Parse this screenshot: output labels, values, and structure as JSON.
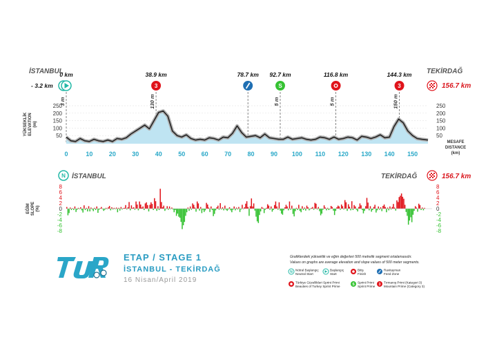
{
  "header": {
    "start_city": "İSTANBUL",
    "finish_city": "TEKİRDAĞ",
    "neutral_distance": "- 3.2 km",
    "total_distance": "156.7 km",
    "markers": [
      {
        "km": 0,
        "label": "0 km",
        "type": "start",
        "symbol": "▶",
        "color": "#22b8a6",
        "elevation": 3,
        "elev_label": "3 m"
      },
      {
        "km": 38.9,
        "label": "38.9 km",
        "type": "mountain",
        "symbol": "3",
        "color": "#e0141b",
        "elevation": 130,
        "elev_label": "130 m"
      },
      {
        "km": 78.7,
        "label": "78.7 km",
        "type": "feed",
        "symbol": "/",
        "color": "#1f6fb3",
        "elevation": null,
        "elev_label": ""
      },
      {
        "km": 92.7,
        "label": "92.7 km",
        "type": "sprint",
        "symbol": "S",
        "color": "#35c232",
        "elevation": 5,
        "elev_label": "5 m"
      },
      {
        "km": 116.8,
        "label": "116.8 km",
        "type": "beauties",
        "symbol": "✱",
        "color": "#e0141b",
        "elevation": 5,
        "elev_label": "5 m"
      },
      {
        "km": 144.3,
        "label": "144.3 km",
        "type": "mountain",
        "symbol": "3",
        "color": "#e0141b",
        "elevation": 150,
        "elev_label": "150 m"
      }
    ]
  },
  "chart_data": [
    {
      "type": "area",
      "ylabel": [
        "YÜKSEKLİK",
        "ELEVATION",
        "(m)"
      ],
      "xlabel": [
        "MESAFE",
        "DISTANCE",
        "(km)"
      ],
      "ylim": [
        0,
        250
      ],
      "yticks": [
        50,
        100,
        150,
        200,
        250
      ],
      "xlim": [
        0,
        156.7
      ],
      "xticks": [
        0,
        10,
        20,
        30,
        40,
        50,
        60,
        70,
        80,
        90,
        100,
        110,
        120,
        130,
        140,
        150
      ],
      "x": [
        0,
        2,
        4,
        6,
        8,
        10,
        12,
        14,
        16,
        18,
        20,
        22,
        24,
        26,
        28,
        30,
        32,
        34,
        36,
        38,
        40,
        42,
        44,
        46,
        48,
        50,
        52,
        54,
        56,
        58,
        60,
        62,
        64,
        66,
        68,
        70,
        72,
        74,
        76,
        78,
        80,
        82,
        84,
        86,
        88,
        90,
        92,
        94,
        96,
        98,
        100,
        102,
        104,
        106,
        108,
        110,
        112,
        114,
        116,
        118,
        120,
        122,
        124,
        126,
        128,
        130,
        132,
        134,
        136,
        138,
        140,
        142,
        144,
        146,
        148,
        150,
        152,
        154,
        156.7
      ],
      "y": [
        40,
        15,
        10,
        30,
        15,
        10,
        25,
        15,
        10,
        20,
        10,
        30,
        25,
        35,
        60,
        80,
        100,
        120,
        95,
        150,
        205,
        215,
        180,
        80,
        50,
        40,
        55,
        30,
        20,
        25,
        20,
        35,
        30,
        20,
        40,
        35,
        65,
        115,
        70,
        40,
        45,
        50,
        35,
        60,
        35,
        30,
        25,
        25,
        40,
        25,
        30,
        35,
        25,
        20,
        25,
        40,
        35,
        25,
        40,
        25,
        30,
        40,
        35,
        20,
        45,
        40,
        30,
        40,
        55,
        35,
        40,
        110,
        160,
        135,
        80,
        50,
        30,
        25,
        20
      ]
    },
    {
      "type": "bar",
      "ylabel": [
        "EĞİM",
        "SLOPE",
        "(%)"
      ],
      "ylim": [
        -8,
        8
      ],
      "yticks": [
        8,
        6,
        4,
        2,
        0,
        -2,
        -4,
        -6,
        -8
      ],
      "bin_km": 0.5,
      "values": [
        0.6,
        -2.4,
        -1.6,
        0.4,
        -0.5,
        0.2,
        -0.5,
        0.8,
        -1.2,
        -0.4,
        0.3,
        -0.2,
        0.5,
        -0.6,
        -1.4,
        1.2,
        -0.5,
        0.3,
        -1.0,
        0.9,
        -1.0,
        0.4,
        -0.3,
        -0.9,
        0.3,
        -0.5,
        0.8,
        -1.5,
        -0.4,
        0.2,
        0.6,
        -0.2,
        -0.8,
        -0.4,
        0.3,
        -0.2,
        0.5,
        1.0,
        -0.6,
        0.5,
        -0.3,
        0.3,
        -0.2,
        0.4,
        -1.3,
        0.3,
        -0.7,
        0.6,
        -0.3,
        0.2,
        0.3,
        1.3,
        -0.3,
        0.5,
        2.4,
        -0.6,
        1.2,
        0.3,
        0.5,
        -0.4,
        2.6,
        1.5,
        -0.6,
        2.6,
        1.5,
        0.4,
        0.8,
        -0.5,
        1.9,
        2.3,
        1.3,
        -1.0,
        1.4,
        2.3,
        1.7,
        -0.5,
        3.8,
        2.7,
        -0.8,
        0.9,
        -0.5,
        7.2,
        2.4,
        0.5,
        1.1,
        -0.8,
        -0.2,
        0.9,
        -0.4,
        0.8,
        -0.2,
        0.4,
        -0.3,
        -1.3,
        -0.5,
        -2.6,
        -1.8,
        -2.9,
        -3.3,
        -4.8,
        -7.4,
        -6.0,
        -4.8,
        -2.6,
        -1.3,
        0.4,
        -0.8,
        0.8,
        -0.4,
        1.9,
        1.4,
        0.4,
        -1.1,
        2.6,
        1.9,
        -0.7,
        0.6,
        -1.6,
        -0.4,
        -1.2,
        -0.6,
        2.1,
        1.5,
        0.4,
        -1.2,
        0.8,
        -0.5,
        -2.7,
        -1.9,
        -0.6,
        0.5,
        1.1,
        -0.4,
        2.0,
        -0.3,
        0.5,
        -0.6,
        1.1,
        -0.4,
        -0.8,
        -0.3,
        0.5,
        -0.6,
        -1.3,
        -0.4,
        0.8,
        -0.6,
        0.4,
        -0.3,
        0.6,
        -1.2,
        -0.3,
        1.4,
        -0.2,
        0.5,
        1.8,
        2.7,
        0.6,
        -2.6,
        0.9,
        3.7,
        0.8,
        1.9,
        -0.7,
        -2.9,
        -4.6,
        -5.2,
        -2.3,
        -1.0,
        0.6,
        0.3,
        -1.6,
        -0.4,
        0.3,
        1.6,
        1.1,
        -0.4,
        0.8,
        -1.1,
        -0.5,
        1.3,
        2.6,
        0.8,
        -0.4,
        2.3,
        -0.7,
        -1.8,
        -2.2,
        -0.6,
        0.5,
        1.4,
        0.8,
        -0.6,
        2.6,
        -0.4,
        1.1,
        -1.9,
        -2.8,
        -0.9,
        0.3,
        -0.5,
        1.4,
        -0.8,
        -1.3,
        0.9,
        -0.5,
        0.4,
        -0.7,
        1.1,
        0.5,
        -0.6,
        -0.2,
        0.3,
        0.6,
        -0.4,
        2.1,
        1.8,
        -0.3,
        0.6,
        -0.9,
        -2.4,
        -1.8,
        -0.4,
        1.2,
        0.4,
        -0.6,
        0.3,
        -0.5,
        -0.2,
        1.0,
        0.6,
        -0.7,
        -2.3,
        -0.8,
        0.5,
        1.1,
        0.8,
        -0.4,
        1.5,
        0.9,
        -0.3,
        3.1,
        2.3,
        -0.8,
        1.6,
        0.7,
        -0.6,
        2.7,
        -0.5,
        1.3,
        0.8,
        -0.4,
        -1.0,
        0.6,
        1.9,
        1.2,
        -0.5,
        -1.7,
        -0.8,
        0.9,
        3.9,
        2.2,
        -0.6,
        0.9,
        -1.1,
        -0.5,
        0.6,
        1.4,
        -1.4,
        -0.6,
        0.8,
        -0.4,
        0.5,
        -0.9,
        1.0,
        1.5,
        0.6,
        -1.3,
        0.4,
        -0.6,
        0.8,
        -0.3,
        0.6,
        1.7,
        0.4,
        -0.7,
        3.0,
        2.4,
        4.2,
        4.7,
        5.5,
        4.3,
        3.6,
        1.4,
        -1.2,
        -2.6,
        -5.8,
        -4.3,
        -3.1,
        -4.9,
        -2.2,
        -0.8,
        0.9,
        0.4,
        -1.1,
        1.8,
        1.3,
        -0.5,
        0.4,
        -0.6,
        0.3
      ]
    }
  ],
  "footer": {
    "logo_text": "TUR",
    "stage_title": "ETAP / STAGE 1",
    "route": "İSTANBUL - TEKİRDAĞ",
    "date": "16 Nisan/April 2019",
    "note_tr": "Grafiklerdeki yükseklik ve eğim değerleri 500 metrelik segment ortalamasıdır.",
    "note_en": "Values on graphs are average elevation and slope values of 500 meter segments.",
    "legend": [
      {
        "symbol": "N",
        "color": "#22b8a6",
        "line1": "Nötral Başlangıç",
        "line2": "Neutral Start"
      },
      {
        "symbol": "▶",
        "color": "#22b8a6",
        "line1": "Başlangıç",
        "line2": "Start"
      },
      {
        "symbol": "✱",
        "color": "#e0141b",
        "line1": "Bitiş",
        "line2": "Finish"
      },
      {
        "symbol": "/",
        "color": "#1f6fb3",
        "line1": "Ravitayman",
        "line2": "Feed Zone"
      },
      {
        "symbol": "✱",
        "color": "#e0141b",
        "line1": "Türkiye Güzellikleri Sprint Primi",
        "line2": "Beauties of Turkey Sprint Prime"
      },
      {
        "symbol": "S",
        "color": "#35c232",
        "line1": "Sprint Primi",
        "line2": "Sprint Prime"
      },
      {
        "symbol": "3",
        "color": "#e0141b",
        "line1": "Tırmanış Primi (Kategori 3)",
        "line2": "Mountain Prime (Category 3)"
      }
    ]
  },
  "colors": {
    "accent": "#2a9cc2",
    "red": "#d9141b",
    "green": "#35c232",
    "slope_up": "#e0141b",
    "slope_down": "#35c232"
  }
}
